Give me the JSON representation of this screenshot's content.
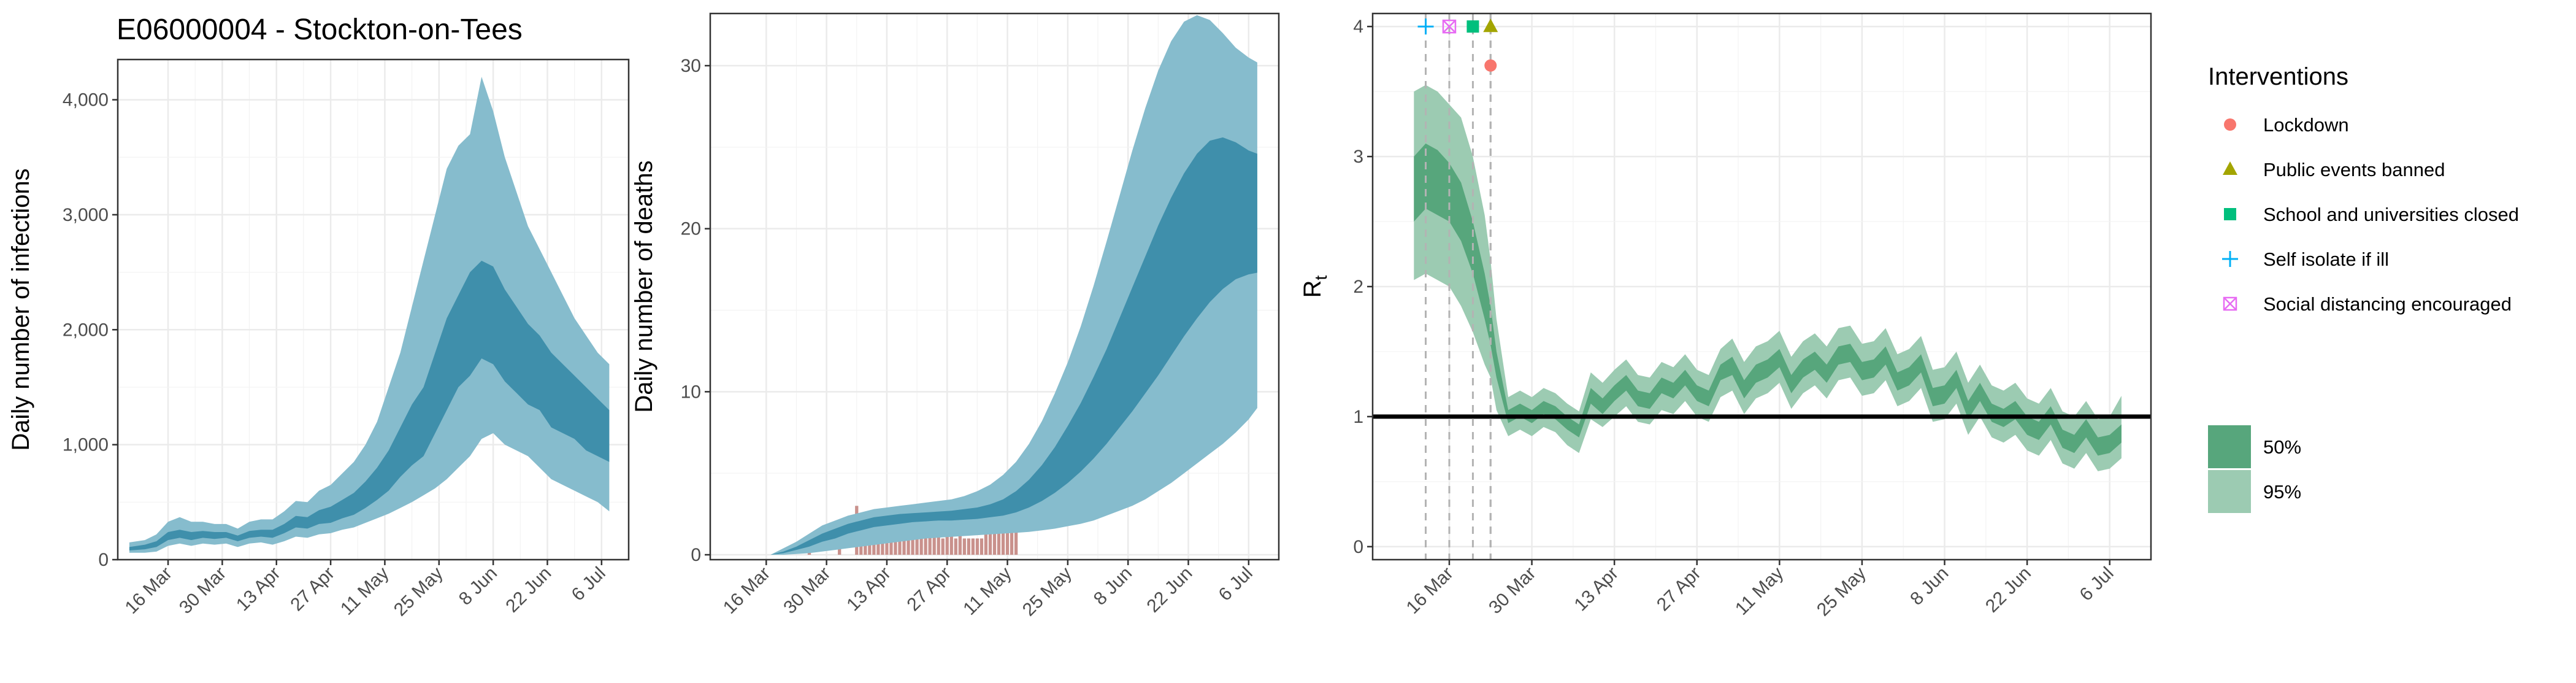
{
  "title": "E06000004 - Stockton-on-Tees",
  "colors": {
    "ribbon_outer": "#86bccd",
    "ribbon_inner": "#3f8fab",
    "observed_deaths": "#c9918c",
    "rt_outer": "#9ccbb2",
    "rt_inner": "#57a67c",
    "threshold_line": "#000000",
    "intervention_line": "#b3b3b3",
    "lockdown": "#F8766D",
    "public_events": "#A3A500",
    "school": "#00BF7D",
    "self_isolate": "#00B0F6",
    "social_distancing": "#E76BF3"
  },
  "chart_data": [
    {
      "type": "area",
      "name": "infections",
      "ylabel": "Daily number of infections",
      "xlabel": "",
      "date_ticks": [
        "16 Mar",
        "30 Mar",
        "13 Apr",
        "27 Apr",
        "11 May",
        "25 May",
        "8 Jun",
        "22 Jun",
        "6 Jul"
      ],
      "yticks": [
        0,
        1000,
        2000,
        3000,
        4000
      ],
      "ytick_labels": [
        "0",
        "1,000",
        "2,000",
        "3,000",
        "4,000"
      ],
      "ylim": [
        0,
        4350
      ],
      "xlim": [
        "2020-03-03",
        "2020-07-13"
      ],
      "grid": true,
      "bands": {
        "x": [
          "2020-03-06",
          "2020-03-10",
          "2020-03-13",
          "2020-03-16",
          "2020-03-19",
          "2020-03-22",
          "2020-03-25",
          "2020-03-28",
          "2020-03-31",
          "2020-04-03",
          "2020-04-06",
          "2020-04-09",
          "2020-04-12",
          "2020-04-15",
          "2020-04-18",
          "2020-04-21",
          "2020-04-24",
          "2020-04-27",
          "2020-04-30",
          "2020-05-03",
          "2020-05-06",
          "2020-05-09",
          "2020-05-12",
          "2020-05-15",
          "2020-05-18",
          "2020-05-21",
          "2020-05-24",
          "2020-05-27",
          "2020-05-30",
          "2020-06-02",
          "2020-06-05",
          "2020-06-08",
          "2020-06-11",
          "2020-06-14",
          "2020-06-17",
          "2020-06-20",
          "2020-06-23",
          "2020-06-26",
          "2020-06-29",
          "2020-07-02",
          "2020-07-05",
          "2020-07-08"
        ],
        "p95_low": [
          60,
          60,
          70,
          120,
          140,
          120,
          140,
          130,
          140,
          110,
          140,
          150,
          130,
          160,
          200,
          190,
          220,
          230,
          260,
          280,
          320,
          360,
          400,
          450,
          500,
          560,
          620,
          700,
          800,
          900,
          1050,
          1100,
          1000,
          950,
          900,
          800,
          700,
          650,
          600,
          550,
          500,
          420
        ],
        "p50_low": [
          80,
          90,
          110,
          170,
          190,
          170,
          190,
          180,
          190,
          160,
          190,
          200,
          190,
          230,
          280,
          270,
          310,
          320,
          360,
          390,
          450,
          520,
          600,
          720,
          820,
          900,
          1100,
          1300,
          1500,
          1600,
          1750,
          1700,
          1550,
          1450,
          1350,
          1300,
          1150,
          1100,
          1050,
          950,
          900,
          850
        ],
        "p50_high": [
          110,
          130,
          160,
          240,
          260,
          240,
          250,
          240,
          240,
          210,
          250,
          260,
          260,
          310,
          380,
          370,
          430,
          460,
          520,
          580,
          680,
          800,
          950,
          1150,
          1350,
          1500,
          1800,
          2100,
          2300,
          2500,
          2600,
          2550,
          2350,
          2200,
          2050,
          1950,
          1800,
          1700,
          1600,
          1500,
          1400,
          1300
        ],
        "p95_high": [
          150,
          170,
          220,
          330,
          370,
          330,
          330,
          310,
          310,
          270,
          330,
          350,
          350,
          420,
          510,
          500,
          600,
          650,
          750,
          850,
          1000,
          1200,
          1500,
          1800,
          2200,
          2600,
          3000,
          3400,
          3600,
          3700,
          4200,
          3900,
          3500,
          3200,
          2900,
          2700,
          2500,
          2300,
          2100,
          1950,
          1800,
          1700
        ]
      }
    },
    {
      "type": "area",
      "name": "deaths",
      "ylabel": "Daily number of deaths",
      "xlabel": "",
      "date_ticks": [
        "16 Mar",
        "30 Mar",
        "13 Apr",
        "27 Apr",
        "11 May",
        "25 May",
        "8 Jun",
        "22 Jun",
        "6 Jul"
      ],
      "yticks": [
        0,
        10,
        20,
        30
      ],
      "ytick_labels": [
        "0",
        "10",
        "20",
        "30"
      ],
      "ylim": [
        -0.3,
        33.2
      ],
      "xlim": [
        "2020-03-03",
        "2020-07-13"
      ],
      "grid": true,
      "bands": {
        "x": [
          "2020-03-17",
          "2020-03-20",
          "2020-03-23",
          "2020-03-26",
          "2020-03-29",
          "2020-04-01",
          "2020-04-04",
          "2020-04-07",
          "2020-04-10",
          "2020-04-13",
          "2020-04-16",
          "2020-04-19",
          "2020-04-22",
          "2020-04-25",
          "2020-04-28",
          "2020-05-01",
          "2020-05-04",
          "2020-05-07",
          "2020-05-10",
          "2020-05-13",
          "2020-05-16",
          "2020-05-19",
          "2020-05-22",
          "2020-05-25",
          "2020-05-28",
          "2020-05-31",
          "2020-06-03",
          "2020-06-06",
          "2020-06-09",
          "2020-06-12",
          "2020-06-15",
          "2020-06-18",
          "2020-06-21",
          "2020-06-24",
          "2020-06-27",
          "2020-06-30",
          "2020-07-03",
          "2020-07-06",
          "2020-07-08"
        ],
        "p95_low": [
          0,
          0,
          0.05,
          0.1,
          0.2,
          0.3,
          0.4,
          0.5,
          0.6,
          0.7,
          0.8,
          0.9,
          1.0,
          1.05,
          1.1,
          1.15,
          1.2,
          1.25,
          1.3,
          1.35,
          1.4,
          1.5,
          1.6,
          1.75,
          1.9,
          2.1,
          2.4,
          2.7,
          3.0,
          3.4,
          3.9,
          4.4,
          5.0,
          5.6,
          6.2,
          6.8,
          7.5,
          8.3,
          9.0
        ],
        "p50_low": [
          0,
          0.1,
          0.3,
          0.5,
          0.8,
          1.0,
          1.3,
          1.5,
          1.7,
          1.8,
          1.9,
          2.0,
          2.05,
          2.1,
          2.1,
          2.15,
          2.2,
          2.3,
          2.4,
          2.6,
          2.9,
          3.3,
          3.8,
          4.4,
          5.1,
          5.9,
          6.8,
          7.8,
          8.8,
          9.9,
          11.0,
          12.2,
          13.4,
          14.5,
          15.5,
          16.3,
          16.9,
          17.2,
          17.3
        ],
        "p50_high": [
          0,
          0.2,
          0.5,
          0.9,
          1.3,
          1.6,
          1.9,
          2.1,
          2.3,
          2.4,
          2.5,
          2.55,
          2.6,
          2.65,
          2.7,
          2.8,
          2.9,
          3.1,
          3.4,
          3.9,
          4.6,
          5.5,
          6.6,
          7.9,
          9.3,
          10.9,
          12.6,
          14.5,
          16.4,
          18.3,
          20.2,
          21.9,
          23.4,
          24.6,
          25.4,
          25.6,
          25.3,
          24.8,
          24.6
        ],
        "p95_high": [
          0,
          0.4,
          0.8,
          1.3,
          1.8,
          2.1,
          2.4,
          2.6,
          2.8,
          2.9,
          3.0,
          3.1,
          3.2,
          3.3,
          3.4,
          3.6,
          3.9,
          4.3,
          4.9,
          5.7,
          6.8,
          8.2,
          9.9,
          11.8,
          14.0,
          16.5,
          19.2,
          22.0,
          24.8,
          27.4,
          29.7,
          31.5,
          32.7,
          33.1,
          32.8,
          32.0,
          31.1,
          30.5,
          30.2
        ]
      },
      "observed_bars": {
        "x": [
          "2020-03-26",
          "2020-04-02",
          "2020-04-06",
          "2020-04-07",
          "2020-04-08",
          "2020-04-09",
          "2020-04-10",
          "2020-04-11",
          "2020-04-12",
          "2020-04-13",
          "2020-04-14",
          "2020-04-15",
          "2020-04-16",
          "2020-04-17",
          "2020-04-18",
          "2020-04-19",
          "2020-04-20",
          "2020-04-21",
          "2020-04-22",
          "2020-04-23",
          "2020-04-24",
          "2020-04-25",
          "2020-04-26",
          "2020-04-27",
          "2020-04-28",
          "2020-04-29",
          "2020-04-30",
          "2020-05-01",
          "2020-05-02",
          "2020-05-03",
          "2020-05-04",
          "2020-05-05",
          "2020-05-06",
          "2020-05-07",
          "2020-05-08",
          "2020-05-09",
          "2020-05-10",
          "2020-05-11",
          "2020-05-12",
          "2020-05-13"
        ],
        "values": [
          1,
          1,
          3,
          2,
          1,
          2,
          2,
          1,
          2,
          2,
          2,
          1,
          2,
          2,
          2,
          1,
          2,
          2,
          2,
          2,
          3,
          2,
          1,
          2,
          2,
          1,
          2,
          1,
          1,
          1,
          1,
          1,
          2,
          2,
          3,
          4,
          2,
          3,
          4,
          3
        ]
      }
    },
    {
      "type": "area",
      "name": "rt",
      "ylabel": "R",
      "ylabel_subscript": "t",
      "xlabel": "",
      "date_ticks": [
        "16 Mar",
        "30 Mar",
        "13 Apr",
        "27 Apr",
        "11 May",
        "25 May",
        "8 Jun",
        "22 Jun",
        "6 Jul"
      ],
      "yticks": [
        0,
        1,
        2,
        3,
        4
      ],
      "ytick_labels": [
        "0",
        "1",
        "2",
        "3",
        "4"
      ],
      "ylim": [
        -0.1,
        4.1
      ],
      "xlim": [
        "2020-03-03",
        "2020-07-13"
      ],
      "grid": true,
      "threshold": 1,
      "bands": {
        "x": [
          "2020-03-10",
          "2020-03-12",
          "2020-03-14",
          "2020-03-16",
          "2020-03-18",
          "2020-03-20",
          "2020-03-22",
          "2020-03-23",
          "2020-03-24",
          "2020-03-26",
          "2020-03-28",
          "2020-03-30",
          "2020-04-01",
          "2020-04-03",
          "2020-04-05",
          "2020-04-07",
          "2020-04-09",
          "2020-04-11",
          "2020-04-13",
          "2020-04-15",
          "2020-04-17",
          "2020-04-19",
          "2020-04-21",
          "2020-04-23",
          "2020-04-25",
          "2020-04-27",
          "2020-04-29",
          "2020-05-01",
          "2020-05-03",
          "2020-05-05",
          "2020-05-07",
          "2020-05-09",
          "2020-05-11",
          "2020-05-13",
          "2020-05-15",
          "2020-05-17",
          "2020-05-19",
          "2020-05-21",
          "2020-05-23",
          "2020-05-25",
          "2020-05-27",
          "2020-05-29",
          "2020-05-31",
          "2020-06-02",
          "2020-06-04",
          "2020-06-06",
          "2020-06-08",
          "2020-06-10",
          "2020-06-12",
          "2020-06-14",
          "2020-06-16",
          "2020-06-18",
          "2020-06-20",
          "2020-06-22",
          "2020-06-24",
          "2020-06-26",
          "2020-06-28",
          "2020-06-30",
          "2020-07-02",
          "2020-07-04",
          "2020-07-06",
          "2020-07-08"
        ],
        "p95_low": [
          2.05,
          2.1,
          2.05,
          2.0,
          1.85,
          1.65,
          1.4,
          1.3,
          1.05,
          0.85,
          0.9,
          0.85,
          0.92,
          0.88,
          0.78,
          0.72,
          0.98,
          0.92,
          1.0,
          1.08,
          0.96,
          0.94,
          1.05,
          1.02,
          1.12,
          1.0,
          0.96,
          1.15,
          1.2,
          1.02,
          1.14,
          1.18,
          1.26,
          1.06,
          1.18,
          1.24,
          1.14,
          1.28,
          1.3,
          1.16,
          1.18,
          1.28,
          1.08,
          1.12,
          1.22,
          0.96,
          0.98,
          1.1,
          0.86,
          1.0,
          0.84,
          0.8,
          0.86,
          0.74,
          0.7,
          0.82,
          0.64,
          0.6,
          0.72,
          0.58,
          0.6,
          0.68
        ],
        "p50_low": [
          2.5,
          2.6,
          2.55,
          2.5,
          2.35,
          2.1,
          1.75,
          1.55,
          1.3,
          0.95,
          1.0,
          0.95,
          1.02,
          0.98,
          0.9,
          0.84,
          1.1,
          1.02,
          1.12,
          1.2,
          1.08,
          1.06,
          1.18,
          1.14,
          1.24,
          1.12,
          1.08,
          1.28,
          1.32,
          1.14,
          1.26,
          1.3,
          1.38,
          1.18,
          1.3,
          1.36,
          1.26,
          1.4,
          1.42,
          1.28,
          1.3,
          1.4,
          1.2,
          1.24,
          1.34,
          1.08,
          1.1,
          1.22,
          0.98,
          1.12,
          0.96,
          0.92,
          0.98,
          0.86,
          0.82,
          0.94,
          0.76,
          0.72,
          0.84,
          0.7,
          0.72,
          0.8
        ],
        "p50_high": [
          3.0,
          3.1,
          3.05,
          2.95,
          2.8,
          2.5,
          2.1,
          1.85,
          1.5,
          1.05,
          1.1,
          1.05,
          1.12,
          1.08,
          1.0,
          0.94,
          1.22,
          1.14,
          1.24,
          1.32,
          1.2,
          1.18,
          1.3,
          1.26,
          1.36,
          1.24,
          1.2,
          1.4,
          1.46,
          1.28,
          1.4,
          1.44,
          1.52,
          1.32,
          1.44,
          1.5,
          1.4,
          1.54,
          1.56,
          1.42,
          1.44,
          1.54,
          1.34,
          1.38,
          1.48,
          1.22,
          1.24,
          1.36,
          1.12,
          1.26,
          1.1,
          1.06,
          1.12,
          1.0,
          0.96,
          1.08,
          0.9,
          0.86,
          0.98,
          0.84,
          0.86,
          0.94
        ],
        "p95_high": [
          3.5,
          3.55,
          3.5,
          3.4,
          3.3,
          3.0,
          2.55,
          2.2,
          1.75,
          1.15,
          1.2,
          1.15,
          1.22,
          1.18,
          1.1,
          1.04,
          1.34,
          1.26,
          1.36,
          1.44,
          1.32,
          1.3,
          1.42,
          1.38,
          1.48,
          1.36,
          1.32,
          1.52,
          1.6,
          1.42,
          1.54,
          1.58,
          1.66,
          1.46,
          1.58,
          1.64,
          1.54,
          1.68,
          1.7,
          1.56,
          1.58,
          1.68,
          1.48,
          1.52,
          1.62,
          1.36,
          1.38,
          1.5,
          1.26,
          1.4,
          1.24,
          1.2,
          1.26,
          1.14,
          1.1,
          1.22,
          1.04,
          1.0,
          1.12,
          0.98,
          1.0,
          1.16
        ]
      },
      "interventions": [
        {
          "name": "Self isolate if ill",
          "date": "2020-03-12",
          "marker": "plus",
          "y": 4.0,
          "color_key": "self_isolate"
        },
        {
          "name": "Social distancing encouraged",
          "date": "2020-03-16",
          "marker": "boxx",
          "y": 4.0,
          "color_key": "social_distancing"
        },
        {
          "name": "School and universities closed",
          "date": "2020-03-20",
          "marker": "square",
          "y": 4.0,
          "color_key": "school"
        },
        {
          "name": "Public events banned",
          "date": "2020-03-23",
          "marker": "triangle",
          "y": 4.0,
          "color_key": "public_events"
        },
        {
          "name": "Lockdown",
          "date": "2020-03-23",
          "marker": "circle",
          "y": 3.7,
          "color_key": "lockdown"
        }
      ]
    }
  ],
  "legend": {
    "title": "Interventions",
    "items": [
      {
        "label": "Lockdown",
        "marker": "circle",
        "color_key": "lockdown"
      },
      {
        "label": "Public events banned",
        "marker": "triangle",
        "color_key": "public_events"
      },
      {
        "label": "School and universities closed",
        "marker": "square",
        "color_key": "school"
      },
      {
        "label": "Self isolate if ill",
        "marker": "plus",
        "color_key": "self_isolate"
      },
      {
        "label": "Social distancing encouraged",
        "marker": "boxx",
        "color_key": "social_distancing"
      }
    ],
    "ci_items": [
      {
        "label": "50%",
        "color_key": "rt_inner"
      },
      {
        "label": "95%",
        "color_key": "rt_outer"
      }
    ]
  }
}
